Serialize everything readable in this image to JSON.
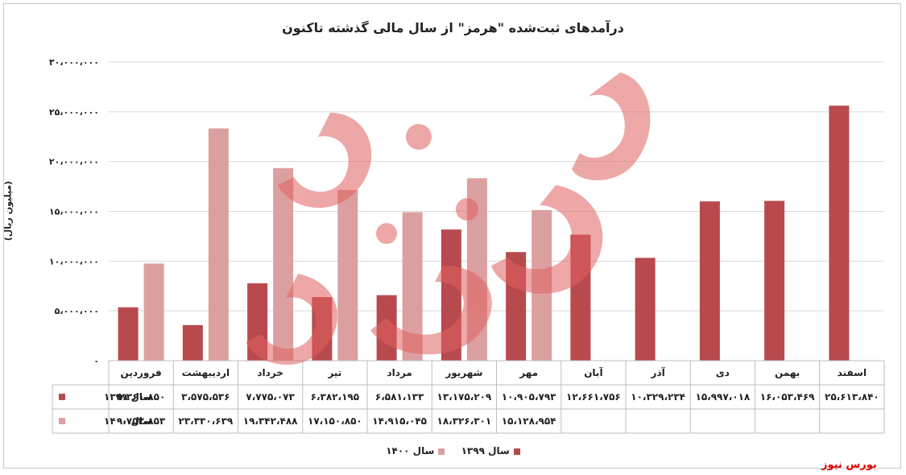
{
  "chart_data": {
    "type": "bar",
    "title": "درآمدهای ثبت‌شده \"هرمز\" از سال مالی گذشته تاکنون",
    "ylabel": "(میلیون ریال)",
    "ylim": [
      0,
      30000000
    ],
    "yticks": [
      0,
      5000000,
      10000000,
      15000000,
      20000000,
      25000000,
      30000000
    ],
    "ytick_labels": [
      "۰",
      "۵،۰۰۰،۰۰۰",
      "۱۰،۰۰۰،۰۰۰",
      "۱۵،۰۰۰،۰۰۰",
      "۲۰،۰۰۰،۰۰۰",
      "۲۵،۰۰۰،۰۰۰",
      "۳۰،۰۰۰،۰۰۰"
    ],
    "grid": true,
    "legend_position": "bottom",
    "categories": [
      "فروردین",
      "اردیبهشت",
      "خرداد",
      "تیر",
      "مرداد",
      "شهریور",
      "مهر",
      "آبان",
      "آذر",
      "دی",
      "بهمن",
      "اسفند"
    ],
    "series": [
      {
        "name": "سال ۱۳۹۹",
        "color": "#b84a4e",
        "values": [
          5361850,
          3575536,
          7775073,
          6382195,
          6581133,
          13175209,
          10905793,
          12661756,
          10329234,
          15997018,
          16053469,
          25613840
        ],
        "labels": [
          "۵،۳۶۱،۸۵۰",
          "۳،۵۷۵،۵۳۶",
          "۷،۷۷۵،۰۷۳",
          "۶،۳۸۲،۱۹۵",
          "۶،۵۸۱،۱۳۳",
          "۱۳،۱۷۵،۲۰۹",
          "۱۰،۹۰۵،۷۹۳",
          "۱۲،۶۶۱،۷۵۶",
          "۱۰،۳۲۹،۲۳۴",
          "۱۵،۹۹۷،۰۱۸",
          "۱۶،۰۵۳،۴۶۹",
          "۲۵،۶۱۳،۸۴۰"
        ]
      },
      {
        "name": "سال ۱۴۰۰",
        "color": "#dc9fa0",
        "values": [
          9752853,
          23330639,
          19342488,
          17150850,
          14915045,
          18326301,
          15128954,
          null,
          null,
          null,
          null,
          null
        ],
        "labels": [
          "۹،۷۵۲،۸۵۳",
          "۲۳،۳۳۰،۶۳۹",
          "۱۹،۳۴۲،۴۸۸",
          "۱۷،۱۵۰،۸۵۰",
          "۱۴،۹۱۵،۰۴۵",
          "۱۸،۳۲۶،۳۰۱",
          "۱۵،۱۲۸،۹۵۴",
          "",
          "",
          "",
          "",
          ""
        ]
      }
    ]
  },
  "watermark": {
    "brand": "بورس نیوز",
    "big_text": "بورس نیوز",
    "color": "#e00000"
  }
}
